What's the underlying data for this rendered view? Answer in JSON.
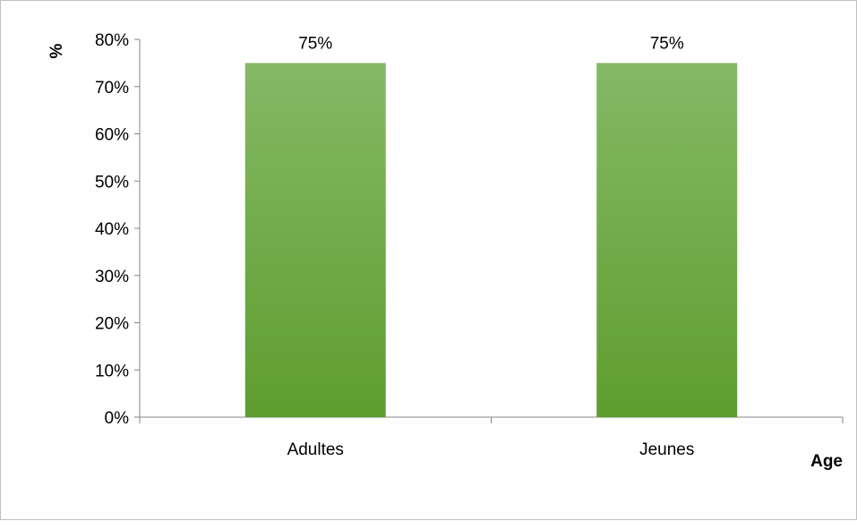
{
  "chart_data": {
    "type": "bar",
    "title": "",
    "xlabel": "Age",
    "ylabel": "%",
    "categories": [
      "Adultes",
      "Jeunes"
    ],
    "values": [
      75,
      75
    ],
    "data_labels": [
      "75%",
      "75%"
    ],
    "ylim": [
      0,
      80
    ],
    "yticks": [
      0,
      10,
      20,
      30,
      40,
      50,
      60,
      70,
      80
    ],
    "ytick_labels": [
      "0%",
      "10%",
      "20%",
      "30%",
      "40%",
      "50%",
      "60%",
      "70%",
      "80%"
    ],
    "grid": false,
    "legend": "none",
    "colors": {
      "bar_top": "#84b965",
      "bar_bottom": "#5f9d2f",
      "axis": "#868686"
    }
  }
}
